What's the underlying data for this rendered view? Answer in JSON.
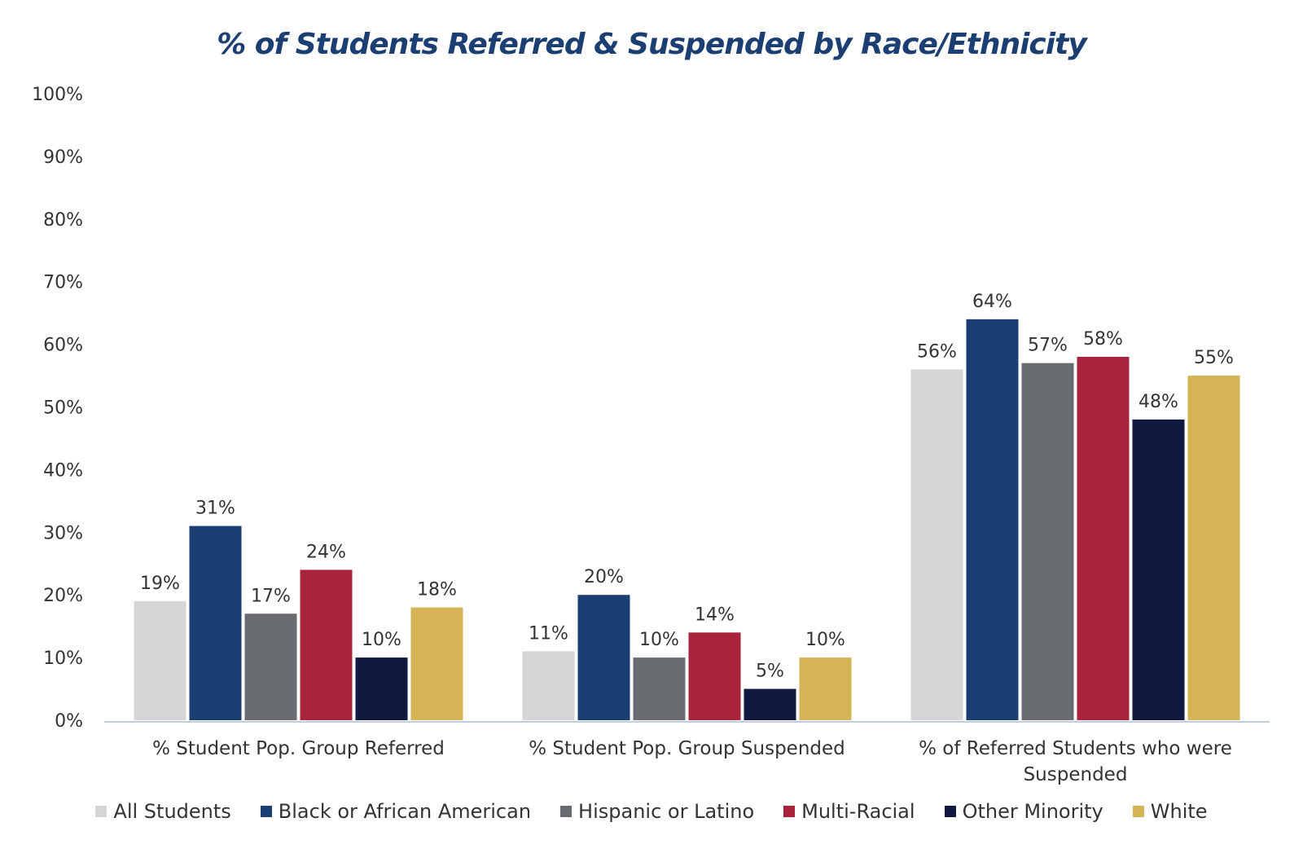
{
  "chart_data": {
    "type": "bar",
    "title": "% of Students Referred & Suspended by Race/Ethnicity",
    "categories": [
      [
        "% Student Pop. Group Referred"
      ],
      [
        "% Student Pop. Group Suspended"
      ],
      [
        "% of Referred Students who were",
        "Suspended"
      ]
    ],
    "series": [
      {
        "name": "All Students",
        "color": "#d4d5d7",
        "values": [
          19,
          11,
          56
        ]
      },
      {
        "name": "Black or African American",
        "color": "#1b3f73",
        "values": [
          31,
          20,
          64
        ]
      },
      {
        "name": "Hispanic or Latino",
        "color": "#686c70",
        "values": [
          17,
          10,
          57
        ]
      },
      {
        "name": "Multi-Racial",
        "color": "#a8233b",
        "values": [
          24,
          14,
          58
        ]
      },
      {
        "name": "Other Minority",
        "color": "#101940",
        "values": [
          10,
          5,
          48
        ]
      },
      {
        "name": "White",
        "color": "#d6b354",
        "values": [
          18,
          10,
          55
        ]
      }
    ],
    "value_labels": [
      [
        "19%",
        "11%",
        "56%"
      ],
      [
        "31%",
        "20%",
        "64%"
      ],
      [
        "17%",
        "10%",
        "57%"
      ],
      [
        "24%",
        "14%",
        "58%"
      ],
      [
        "10%",
        "5%",
        "48%"
      ],
      [
        "18%",
        "10%",
        "55%"
      ]
    ],
    "y_ticks": [
      "0%",
      "10%",
      "20%",
      "30%",
      "40%",
      "50%",
      "60%",
      "70%",
      "80%",
      "90%",
      "100%"
    ],
    "ylim": [
      0,
      100
    ],
    "xlabel": "",
    "ylabel": "",
    "grid": false,
    "legend_position": "bottom"
  }
}
